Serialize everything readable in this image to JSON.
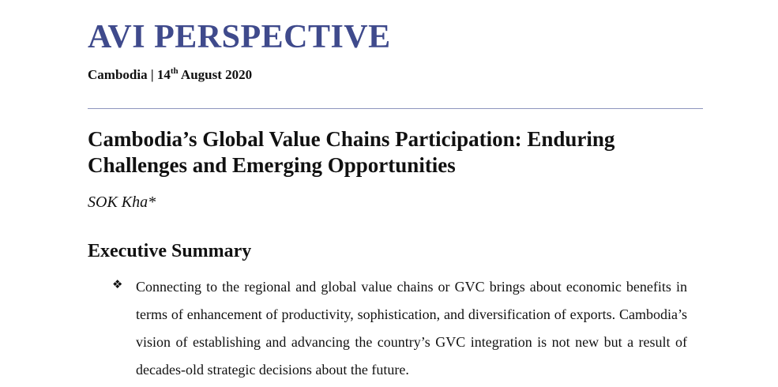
{
  "header": {
    "brand": "AVI PERSPECTIVE",
    "dateline_prefix": "Cambodia | 14",
    "dateline_sup": "th",
    "dateline_suffix": " August 2020"
  },
  "article": {
    "title": "Cambodia’s Global Value Chains Participation: Enduring Challenges and Emerging Opportunities",
    "author": "SOK Kha*",
    "section_heading": "Executive Summary",
    "bullet_icon": "❖",
    "bullets": [
      {
        "text": "Connecting to the regional and global value chains or GVC brings about economic benefits in terms of enhancement of productivity, sophistication, and diversification of exports. Cambodia’s vision of establishing and advancing the country’s GVC integration is not new but a result of decades-old strategic decisions about the future."
      }
    ]
  },
  "colors": {
    "brand": "#3f4a8c",
    "divider": "#8e96bd",
    "text": "#111111"
  }
}
